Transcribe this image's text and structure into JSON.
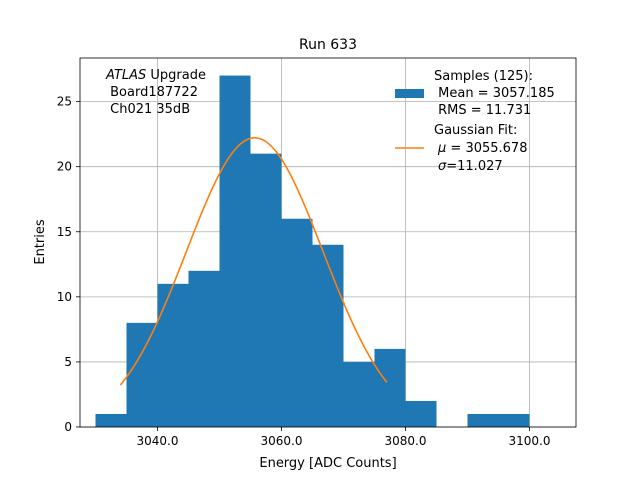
{
  "chart_data": {
    "type": "bar",
    "title": "Run 633",
    "xlabel": "Energy [ADC Counts]",
    "ylabel": "Entries",
    "xlim": [
      3027.5,
      3107.5
    ],
    "ylim": [
      0,
      28.35
    ],
    "xticks": [
      3040,
      3060,
      3080,
      3100
    ],
    "xtick_labels": [
      "3040.0",
      "3060.0",
      "3080.0",
      "3100.0"
    ],
    "yticks": [
      0,
      5,
      10,
      15,
      20,
      25
    ],
    "ytick_labels": [
      "0",
      "5",
      "10",
      "15",
      "20",
      "25"
    ],
    "grid": true,
    "annotation": {
      "line1_italic": "ATLAS",
      "line1_rest": " Upgrade",
      "line2": " Board187722",
      "line3": " Ch021 35dB"
    },
    "histogram": {
      "name": "Samples (125):",
      "color": "#1f77b4",
      "bin_edges": [
        3030,
        3035,
        3040,
        3045,
        3050,
        3055,
        3060,
        3065,
        3070,
        3075,
        3080,
        3085,
        3090,
        3095,
        3100
      ],
      "counts": [
        1,
        8,
        11,
        12,
        27,
        21,
        16,
        14,
        5,
        6,
        2,
        0,
        1,
        1
      ]
    },
    "fit": {
      "name": "Gaussian Fit:",
      "color": "#ff7f0e",
      "amplitude": 22.22,
      "mu": 3055.678,
      "sigma": 11.027,
      "x_range": [
        3034,
        3077
      ]
    },
    "legend": {
      "placement": "top-right",
      "hist_title": "Samples (125):",
      "hist_mean": " Mean = 3057.185",
      "hist_rms": " RMS = 11.731",
      "fit_title": "Gaussian Fit:",
      "fit_mu_symbol": "μ",
      "fit_mu_value": " = 3055.678",
      "fit_sigma_symbol": "σ",
      "fit_sigma_value": "=11.027"
    }
  }
}
